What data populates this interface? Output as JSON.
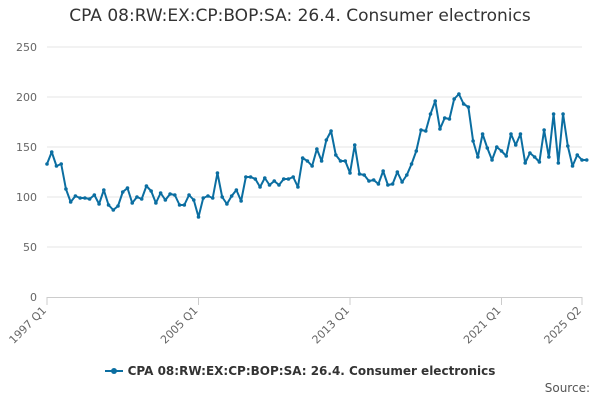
{
  "chart_data": {
    "type": "line",
    "title": "CPA 08:RW:EX:CP:BOP:SA: 26.4. Consumer electronics",
    "xlabel": "",
    "ylabel": "",
    "ylim": [
      0,
      250
    ],
    "y_ticks": [
      "0",
      "50",
      "100",
      "150",
      "200",
      "250"
    ],
    "x_ticks": [
      "1997 Q1",
      "2005 Q1",
      "2013 Q1",
      "2021 Q1",
      "2025 Q2"
    ],
    "grid": "horizontal",
    "legend_position": "bottom",
    "x_start": "1997 Q1",
    "x_end": "2025 Q2",
    "series": [
      {
        "name": "CPA 08:RW:EX:CP:BOP:SA: 26.4. Consumer electronics",
        "color": "#0b6ea1",
        "values": [
          133,
          145,
          131,
          133,
          108,
          95,
          101,
          99,
          99,
          98,
          102,
          93,
          107,
          92,
          87,
          91,
          105,
          109,
          94,
          100,
          98,
          111,
          106,
          94,
          104,
          97,
          103,
          102,
          92,
          92,
          102,
          97,
          80,
          99,
          101,
          99,
          124,
          100,
          93,
          101,
          107,
          96,
          120,
          120,
          118,
          110,
          119,
          112,
          116,
          112,
          118,
          118,
          120,
          110,
          139,
          136,
          131,
          148,
          136,
          157,
          166,
          142,
          136,
          136,
          124,
          152,
          123,
          122,
          116,
          117,
          113,
          126,
          112,
          113,
          125,
          115,
          122,
          133,
          146,
          167,
          166,
          183,
          196,
          168,
          179,
          178,
          198,
          203,
          193,
          190,
          156,
          140,
          163,
          149,
          137,
          150,
          146,
          141,
          163,
          152,
          163,
          134,
          144,
          140,
          135,
          167,
          140,
          183,
          134,
          183,
          151,
          131,
          142,
          137,
          137
        ]
      }
    ]
  },
  "legend": {
    "label": "CPA 08:RW:EX:CP:BOP:SA: 26.4. Consumer electronics"
  },
  "source": {
    "label": "Source:"
  }
}
